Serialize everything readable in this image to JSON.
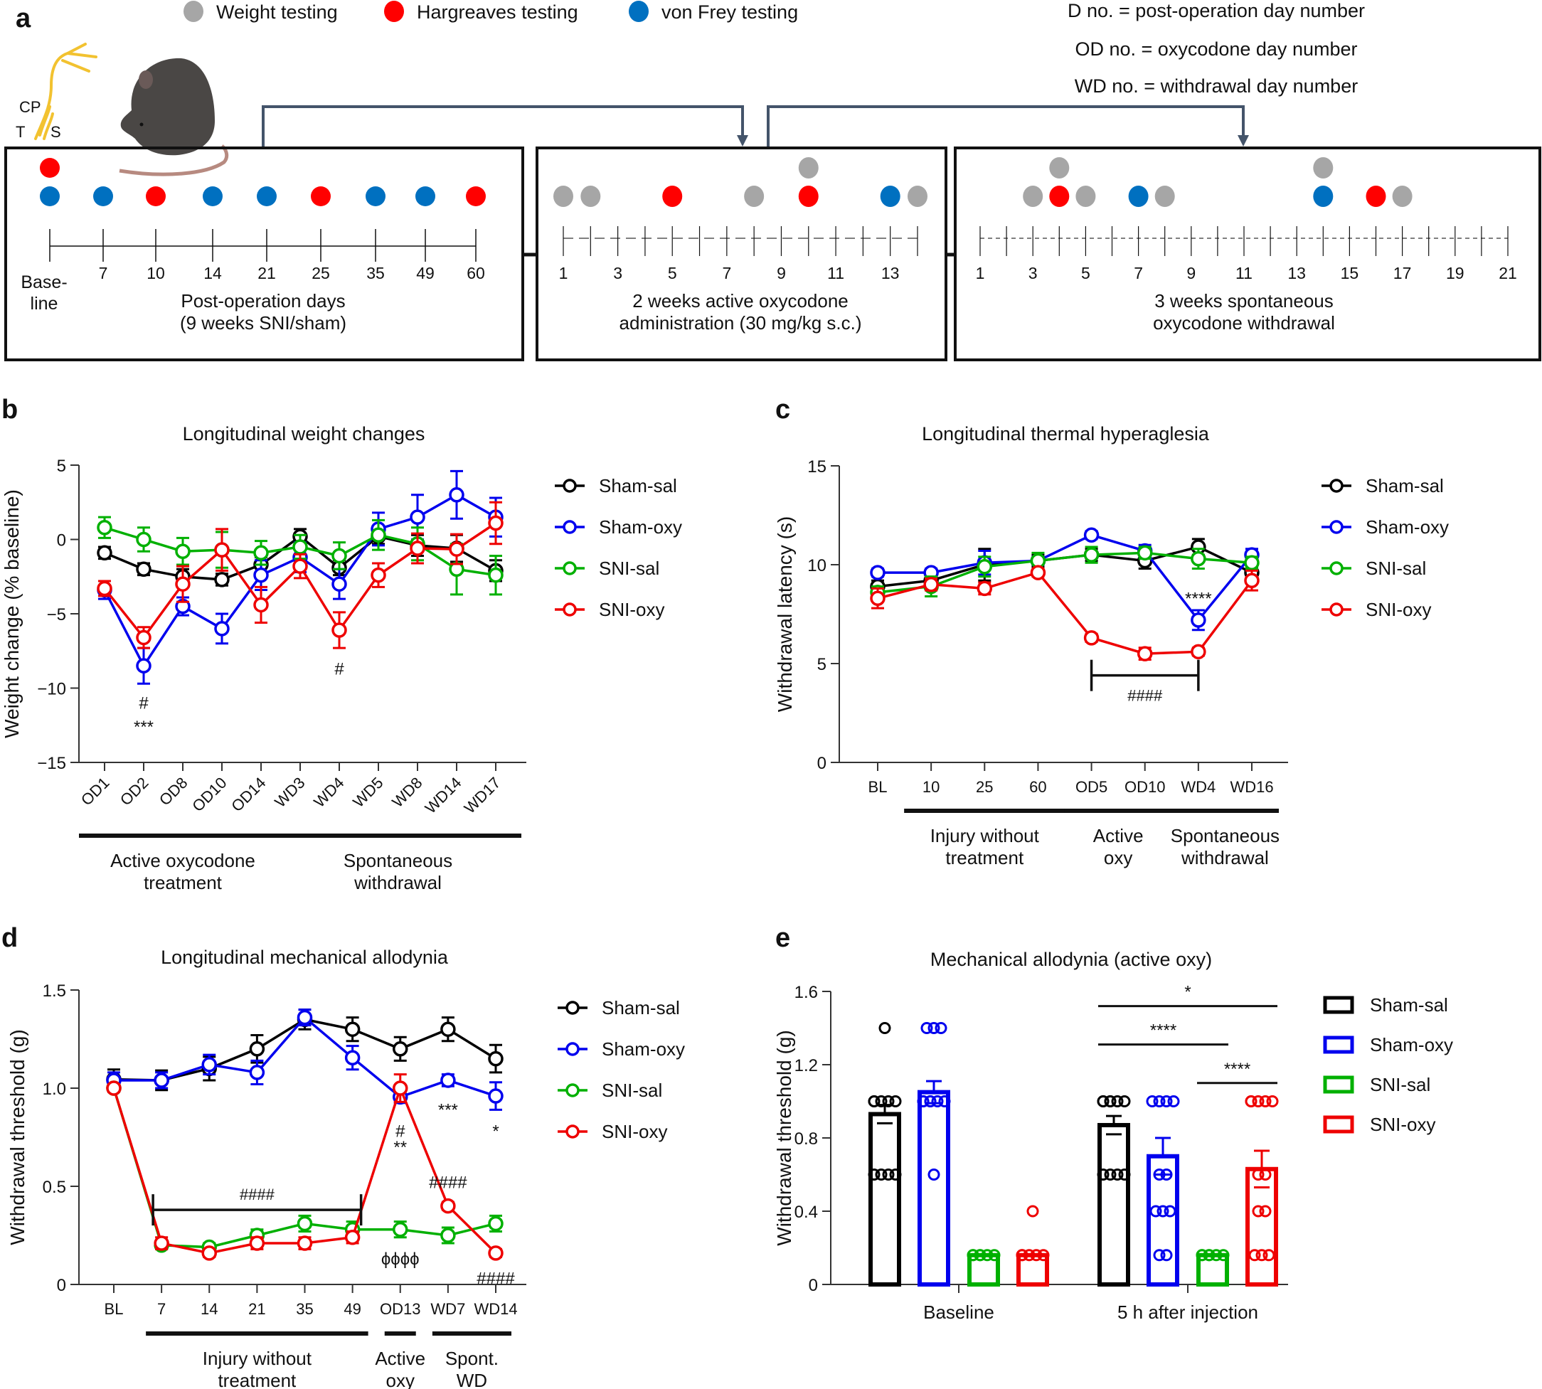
{
  "panel_a": {
    "letter": "a",
    "legend": [
      {
        "label": "Weight testing",
        "color": "#a6a6a6",
        "icon": "gray-dot-icon"
      },
      {
        "label": "Hargreaves testing",
        "color": "#ff0000",
        "icon": "red-dot-icon"
      },
      {
        "label": "von Frey testing",
        "color": "#0070c0",
        "icon": "blue-dot-icon"
      }
    ],
    "definitions": [
      "D no. = post-operation day number",
      "OD no. = oxycodone day number",
      "WD no. = withdrawal day number"
    ],
    "nerve_labels": {
      "cp": "CP",
      "t": "T",
      "s": "S"
    },
    "boxes": [
      {
        "name": "post-operation",
        "ticks": [
          "",
          "7",
          "10",
          "14",
          "21",
          "25",
          "35",
          "49",
          "60"
        ],
        "baseline_label": [
          "Base-",
          "line"
        ],
        "caption": [
          "Post-operation days",
          "(9 weeks SNI/sham)"
        ],
        "dots": [
          {
            "tick": 0,
            "row": 0,
            "type": "hargreaves"
          },
          {
            "tick": 0,
            "row": 1,
            "type": "vonfrey"
          },
          {
            "tick": 1,
            "row": 1,
            "type": "vonfrey"
          },
          {
            "tick": 2,
            "row": 1,
            "type": "hargreaves"
          },
          {
            "tick": 3,
            "row": 1,
            "type": "vonfrey"
          },
          {
            "tick": 4,
            "row": 1,
            "type": "vonfrey"
          },
          {
            "tick": 5,
            "row": 1,
            "type": "hargreaves"
          },
          {
            "tick": 6,
            "row": 1,
            "type": "vonfrey"
          },
          {
            "tick": 7,
            "row": 1,
            "type": "vonfrey"
          },
          {
            "tick": 8,
            "row": 1,
            "type": "hargreaves"
          }
        ]
      },
      {
        "name": "active-oxycodone",
        "day_count": 14,
        "tick_labels": [
          "1",
          "3",
          "5",
          "7",
          "9",
          "11",
          "13"
        ],
        "caption": [
          "2 weeks active oxycodone",
          "administration (30 mg/kg s.c.)"
        ],
        "dots": [
          {
            "day": 1,
            "row": 1,
            "type": "weight"
          },
          {
            "day": 2,
            "row": 1,
            "type": "weight"
          },
          {
            "day": 5,
            "row": 1,
            "type": "hargreaves"
          },
          {
            "day": 8,
            "row": 1,
            "type": "weight"
          },
          {
            "day": 10,
            "row": 0,
            "type": "weight"
          },
          {
            "day": 10,
            "row": 1,
            "type": "hargreaves"
          },
          {
            "day": 13,
            "row": 1,
            "type": "vonfrey"
          },
          {
            "day": 14,
            "row": 1,
            "type": "weight"
          }
        ]
      },
      {
        "name": "spontaneous-withdrawal",
        "day_count": 21,
        "tick_labels": [
          "1",
          "3",
          "5",
          "7",
          "9",
          "11",
          "13",
          "15",
          "17",
          "19",
          "21"
        ],
        "caption": [
          "3 weeks spontaneous",
          "oxycodone withdrawal"
        ],
        "dots": [
          {
            "day": 3,
            "row": 1,
            "type": "weight"
          },
          {
            "day": 4,
            "row": 0,
            "type": "weight"
          },
          {
            "day": 4,
            "row": 1,
            "type": "hargreaves"
          },
          {
            "day": 5,
            "row": 1,
            "type": "weight"
          },
          {
            "day": 7,
            "row": 1,
            "type": "vonfrey"
          },
          {
            "day": 8,
            "row": 1,
            "type": "weight"
          },
          {
            "day": 14,
            "row": 0,
            "type": "weight"
          },
          {
            "day": 14,
            "row": 1,
            "type": "vonfrey"
          },
          {
            "day": 16,
            "row": 1,
            "type": "hargreaves"
          },
          {
            "day": 17,
            "row": 1,
            "type": "weight"
          }
        ]
      }
    ]
  },
  "series_colors": {
    "Sham-sal": "#000000",
    "Sham-oxy": "#0000ee",
    "SNI-sal": "#00b000",
    "SNI-oxy": "#ee0000"
  },
  "chart_data": [
    {
      "id": "b",
      "letter": "b",
      "type": "line",
      "title": "Longitudinal weight changes",
      "xlabel": "",
      "ylabel": "Weight change (% baseline)",
      "ylim": [
        -15,
        5
      ],
      "yticks": [
        5,
        0,
        -5,
        -10,
        -15
      ],
      "ytick_labels": [
        "5",
        "0",
        "−5",
        "−10",
        "−15"
      ],
      "categories": [
        "OD1",
        "OD2",
        "OD8",
        "OD10",
        "OD14",
        "WD3",
        "WD4",
        "WD5",
        "WD8",
        "WD14",
        "WD17"
      ],
      "x_rotated": true,
      "grid": false,
      "legend_position": "right",
      "series": [
        {
          "name": "Sham-sal",
          "values": [
            -0.9,
            -2.0,
            -2.5,
            -2.7,
            -1.7,
            0.2,
            -1.9,
            0.2,
            -0.4,
            -0.6,
            -2.1
          ],
          "errors": [
            0.4,
            0.4,
            0.5,
            0.4,
            0.5,
            0.5,
            0.5,
            0.5,
            0.7,
            0.9,
            0.7
          ]
        },
        {
          "name": "Sham-oxy",
          "values": [
            -3.4,
            -8.5,
            -4.5,
            -6.0,
            -2.4,
            -1.2,
            -3.0,
            0.7,
            1.5,
            3.0,
            1.5
          ],
          "errors": [
            0.6,
            1.2,
            0.6,
            1.0,
            1.0,
            1.0,
            1.0,
            1.1,
            1.5,
            1.6,
            1.3
          ]
        },
        {
          "name": "SNI-sal",
          "values": [
            0.8,
            0.0,
            -0.8,
            -0.7,
            -0.9,
            -0.5,
            -1.1,
            0.3,
            -0.3,
            -2.0,
            -2.4
          ],
          "errors": [
            0.7,
            0.8,
            0.9,
            1.2,
            0.8,
            0.8,
            0.9,
            1.0,
            1.1,
            1.7,
            1.3
          ]
        },
        {
          "name": "SNI-oxy",
          "values": [
            -3.3,
            -6.6,
            -3.0,
            -0.7,
            -4.4,
            -1.8,
            -6.1,
            -2.4,
            -0.6,
            -0.65,
            1.1
          ],
          "errors": [
            0.5,
            0.7,
            1.2,
            1.4,
            1.2,
            0.8,
            1.2,
            0.8,
            1.0,
            1.0,
            1.4
          ]
        }
      ],
      "annotations": [
        {
          "text": "#",
          "category": "OD2",
          "y": -11.0
        },
        {
          "text": "***",
          "category": "OD2",
          "y": -12.6
        },
        {
          "text": "#",
          "category": "WD4",
          "y": -8.7
        }
      ],
      "group_bars": [
        {
          "label": [
            "Active oxycodone",
            "treatment"
          ],
          "from": "OD1",
          "to": "OD14"
        },
        {
          "label": [
            "Spontaneous",
            "withdrawal"
          ],
          "from": "WD3",
          "to": "WD17"
        }
      ]
    },
    {
      "id": "c",
      "letter": "c",
      "type": "line",
      "title": "Longitudinal thermal hyperaglesia",
      "xlabel": "",
      "ylabel": "Withdrawal latency (s)",
      "ylim": [
        0,
        15
      ],
      "yticks": [
        15,
        10,
        5,
        0
      ],
      "ytick_labels": [
        "15",
        "10",
        "5",
        "0"
      ],
      "categories": [
        "BL",
        "10",
        "25",
        "60",
        "OD5",
        "OD10",
        "WD4",
        "WD16"
      ],
      "x_rotated": false,
      "grid": false,
      "legend_position": "right",
      "series": [
        {
          "name": "Sham-sal",
          "values": [
            8.9,
            9.2,
            10.0,
            10.2,
            10.5,
            10.2,
            10.9,
            9.6
          ],
          "errors": [
            0.3,
            0.3,
            0.8,
            0.3,
            0.3,
            0.4,
            0.4,
            0.3
          ]
        },
        {
          "name": "Sham-oxy",
          "values": [
            9.6,
            9.6,
            10.1,
            10.2,
            11.5,
            10.7,
            7.2,
            10.5
          ],
          "errors": [
            0.2,
            0.2,
            0.6,
            0.2,
            0.2,
            0.3,
            0.5,
            0.3
          ]
        },
        {
          "name": "SNI-sal",
          "values": [
            8.6,
            8.9,
            9.9,
            10.2,
            10.5,
            10.6,
            10.3,
            10.1
          ],
          "errors": [
            0.3,
            0.5,
            0.5,
            0.4,
            0.4,
            0.3,
            0.5,
            0.3
          ]
        },
        {
          "name": "SNI-oxy",
          "values": [
            8.3,
            9.0,
            8.8,
            9.6,
            6.3,
            5.5,
            5.6,
            9.2
          ],
          "errors": [
            0.5,
            0.3,
            0.3,
            0.2,
            0.2,
            0.3,
            0.2,
            0.5
          ]
        }
      ],
      "annotations": [
        {
          "text": "****",
          "category": "WD4",
          "y": 8.3
        },
        {
          "text": "####",
          "from": "OD5",
          "to": "WD4",
          "bracket_y": 4.4,
          "y": 3.4
        }
      ],
      "group_bars": [
        {
          "label": [
            "Injury without",
            "treatment"
          ],
          "from": "10",
          "to": "60"
        },
        {
          "label": [
            "Active",
            "oxy"
          ],
          "from": "OD5",
          "to": "OD10"
        },
        {
          "label": [
            "Spontaneous",
            "withdrawal"
          ],
          "from": "WD4",
          "to": "WD16"
        }
      ]
    },
    {
      "id": "d",
      "letter": "d",
      "type": "line",
      "title": "Longitudinal mechanical allodynia",
      "xlabel": "",
      "ylabel": "Withdrawal threshold (g)",
      "ylim": [
        0,
        1.5
      ],
      "yticks": [
        1.5,
        1.0,
        0.5,
        0
      ],
      "ytick_labels": [
        "1.5",
        "1.0",
        "0.5",
        "0"
      ],
      "categories": [
        "BL",
        "7",
        "14",
        "21",
        "35",
        "49",
        "OD13",
        "WD7",
        "WD14"
      ],
      "x_rotated": false,
      "grid": false,
      "legend_position": "right",
      "series": [
        {
          "name": "Sham-sal",
          "values": [
            1.045,
            1.04,
            1.1,
            1.2,
            1.35,
            1.3,
            1.2,
            1.3,
            1.15
          ],
          "errors": [
            0.05,
            0.05,
            0.06,
            0.07,
            0.05,
            0.06,
            0.06,
            0.06,
            0.07
          ]
        },
        {
          "name": "Sham-oxy",
          "values": [
            1.04,
            1.04,
            1.12,
            1.08,
            1.36,
            1.155,
            0.955,
            1.04,
            0.96
          ],
          "errors": [
            0.04,
            0.04,
            0.05,
            0.06,
            0.04,
            0.06,
            0.03,
            0.03,
            0.07
          ]
        },
        {
          "name": "SNI-sal",
          "values": [
            1.0,
            0.2,
            0.19,
            0.25,
            0.31,
            0.28,
            0.28,
            0.25,
            0.31
          ],
          "errors": [
            0.02,
            0.02,
            0.02,
            0.03,
            0.04,
            0.04,
            0.04,
            0.04,
            0.04
          ]
        },
        {
          "name": "SNI-oxy",
          "values": [
            1.0,
            0.21,
            0.16,
            0.21,
            0.21,
            0.24,
            1.0,
            0.4,
            0.16
          ],
          "errors": [
            0.02,
            0.03,
            0.02,
            0.03,
            0.03,
            0.03,
            0.07,
            0.02,
            0.02
          ]
        }
      ],
      "annotations": [
        {
          "text": "####",
          "from": "7",
          "to": "49",
          "bracket_y": 0.38,
          "y": 0.46
        },
        {
          "text": "#",
          "category": "OD13",
          "y": 0.78
        },
        {
          "text": "**",
          "category": "OD13",
          "y": 0.7
        },
        {
          "text": "***",
          "category": "WD7",
          "y": 0.89
        },
        {
          "text": "*",
          "category": "WD14",
          "y": 0.78
        },
        {
          "text": "####",
          "category": "WD7",
          "y": 0.52
        },
        {
          "text": "ϕϕϕϕ",
          "category": "OD13",
          "y": 0.13
        },
        {
          "text": "####",
          "category": "WD14",
          "y": 0.03
        }
      ],
      "group_bars": [
        {
          "label": [
            "Injury without",
            "treatment"
          ],
          "from": "7",
          "to": "49"
        },
        {
          "label": [
            "Active",
            "oxy"
          ],
          "from": "OD13",
          "to": "OD13"
        },
        {
          "label": [
            "Spont.",
            "WD"
          ],
          "from": "WD7",
          "to": "WD14"
        }
      ]
    },
    {
      "id": "e",
      "letter": "e",
      "type": "bar",
      "title": "Mechanical allodynia (active oxy)",
      "xlabel": "",
      "ylabel": "Withdrawal threshold (g)",
      "ylim": [
        0,
        1.6
      ],
      "yticks": [
        1.6,
        1.2,
        0.8,
        0.4,
        0
      ],
      "ytick_labels": [
        "1.6",
        "1.2",
        "0.8",
        "0.4",
        "0"
      ],
      "categories": [
        "Baseline",
        "5 h after injection"
      ],
      "grid": false,
      "legend_position": "right",
      "series": [
        {
          "name": "Sham-sal",
          "values": [
            0.93,
            0.87
          ],
          "errors": [
            0.05,
            0.05
          ],
          "points": [
            [
              1.4,
              1.0,
              1.0,
              1.0,
              1.0,
              1.0,
              0.6,
              0.6,
              0.6,
              0.6
            ],
            [
              1.0,
              1.0,
              1.0,
              1.0,
              1.0,
              1.0,
              0.6,
              0.6,
              0.6,
              0.6
            ]
          ]
        },
        {
          "name": "Sham-oxy",
          "values": [
            1.05,
            0.7
          ],
          "errors": [
            0.06,
            0.1
          ],
          "points": [
            [
              1.4,
              1.4,
              1.4,
              1.0,
              1.0,
              1.0,
              1.0,
              1.0,
              1.0,
              0.6
            ],
            [
              1.0,
              1.0,
              1.0,
              1.0,
              0.6,
              0.6,
              0.4,
              0.4,
              0.4,
              0.16,
              0.16
            ]
          ]
        },
        {
          "name": "SNI-sal",
          "values": [
            0.16,
            0.16
          ],
          "errors": [
            0.0,
            0.0
          ],
          "points": [
            [
              0.16,
              0.16,
              0.16,
              0.16,
              0.16,
              0.16
            ],
            [
              0.16,
              0.16,
              0.16,
              0.16,
              0.16,
              0.16
            ]
          ]
        },
        {
          "name": "SNI-oxy",
          "values": [
            0.16,
            0.63
          ],
          "errors": [
            0.0,
            0.1
          ],
          "points": [
            [
              0.4,
              0.16,
              0.16,
              0.16,
              0.16,
              0.16
            ],
            [
              1.0,
              1.0,
              1.0,
              1.0,
              1.0,
              0.6,
              0.6,
              0.4,
              0.4,
              0.16,
              0.16,
              0.16
            ]
          ]
        }
      ],
      "annotations": [
        {
          "text": "*",
          "from_series": "Sham-sal",
          "to_series": "SNI-oxy",
          "category": "5 h after injection",
          "y": 1.52
        },
        {
          "text": "****",
          "from_series": "Sham-sal",
          "to_series": "SNI-sal",
          "category": "5 h after injection",
          "y": 1.31
        },
        {
          "text": "****",
          "from_series": "SNI-sal",
          "to_series": "SNI-oxy",
          "category": "5 h after injection",
          "y": 1.1
        }
      ]
    }
  ]
}
